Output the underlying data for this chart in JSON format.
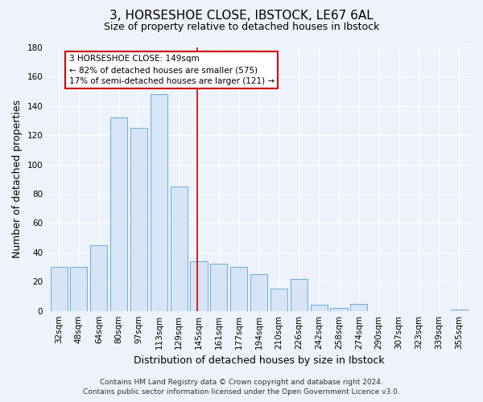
{
  "title": "3, HORSESHOE CLOSE, IBSTOCK, LE67 6AL",
  "subtitle": "Size of property relative to detached houses in Ibstock",
  "xlabel": "Distribution of detached houses by size in Ibstock",
  "ylabel": "Number of detached properties",
  "bar_labels": [
    "32sqm",
    "48sqm",
    "64sqm",
    "80sqm",
    "97sqm",
    "113sqm",
    "129sqm",
    "145sqm",
    "161sqm",
    "177sqm",
    "194sqm",
    "210sqm",
    "226sqm",
    "242sqm",
    "258sqm",
    "274sqm",
    "290sqm",
    "307sqm",
    "323sqm",
    "339sqm",
    "355sqm"
  ],
  "bar_values": [
    30,
    30,
    45,
    132,
    125,
    148,
    85,
    34,
    32,
    30,
    25,
    15,
    22,
    4,
    2,
    5,
    0,
    0,
    0,
    0,
    1
  ],
  "bar_color": "#d6e4f5",
  "bar_edge_color": "#6baed6",
  "reference_line_color": "#cc0000",
  "reference_line_index": 7,
  "ylim": [
    0,
    180
  ],
  "yticks": [
    0,
    20,
    40,
    60,
    80,
    100,
    120,
    140,
    160,
    180
  ],
  "annotation_title": "3 HORSESHOE CLOSE: 149sqm",
  "annotation_line1": "← 82% of detached houses are smaller (575)",
  "annotation_line2": "17% of semi-detached houses are larger (121) →",
  "annotation_box_facecolor": "#ffffff",
  "annotation_box_edgecolor": "#cc0000",
  "footer_line1": "Contains HM Land Registry data © Crown copyright and database right 2024.",
  "footer_line2": "Contains public sector information licensed under the Open Government Licence v3.0.",
  "title_fontsize": 11,
  "subtitle_fontsize": 9,
  "axis_label_fontsize": 9,
  "tick_fontsize": 7.5,
  "footer_fontsize": 6.5,
  "annotation_fontsize": 7.5,
  "background_color": "#eef2fa",
  "grid_color": "#ffffff"
}
